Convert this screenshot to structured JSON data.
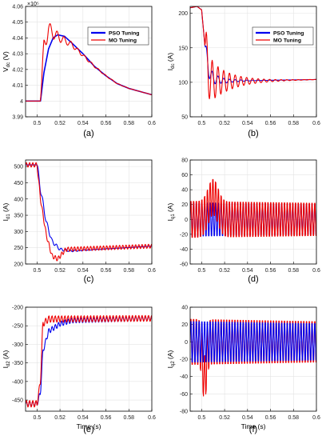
{
  "colors": {
    "pso": "#0000ee",
    "mo": "#ee0000",
    "grid": "#e3e3e3",
    "axis": "#000000"
  },
  "legend_entries": [
    "PSO Tuning",
    "MO Tuning"
  ],
  "chart_data": [
    {
      "type": "line",
      "panel": "(a)",
      "ylabel": "V_dc (V)",
      "ylabel_main": "V",
      "ylabel_sub": "dc",
      "ylabel_unit": "(V)",
      "xlabel": "",
      "exponent": "×10⁵",
      "xlim": [
        0.49,
        0.6
      ],
      "ylim": [
        3.99,
        4.06
      ],
      "xticks": [
        "0.5",
        "0.52",
        "0.54",
        "0.56",
        "0.58",
        "0.6"
      ],
      "yticks": [
        "3.99",
        "4",
        "4.01",
        "4.02",
        "4.03",
        "4.04",
        "4.05",
        "4.06"
      ],
      "legend": "top-right",
      "series": [
        {
          "name": "PSO Tuning",
          "points": [
            [
              0.49,
              4.0
            ],
            [
              0.5,
              4.0
            ],
            [
              0.503,
              4.0
            ],
            [
              0.506,
              4.018
            ],
            [
              0.51,
              4.033
            ],
            [
              0.514,
              4.04
            ],
            [
              0.518,
              4.042
            ],
            [
              0.524,
              4.041
            ],
            [
              0.53,
              4.037
            ],
            [
              0.54,
              4.03
            ],
            [
              0.55,
              4.022
            ],
            [
              0.56,
              4.016
            ],
            [
              0.57,
              4.011
            ],
            [
              0.58,
              4.008
            ],
            [
              0.59,
              4.006
            ],
            [
              0.6,
              4.004
            ]
          ]
        },
        {
          "name": "MO Tuning",
          "base": [
            [
              0.49,
              4.0
            ],
            [
              0.503,
              4.0
            ],
            [
              0.506,
              4.034
            ],
            [
              0.51,
              4.046
            ],
            [
              0.514,
              4.043
            ],
            [
              0.52,
              4.04
            ],
            [
              0.53,
              4.036
            ],
            [
              0.54,
              4.029
            ],
            [
              0.55,
              4.022
            ],
            [
              0.56,
              4.016
            ],
            [
              0.57,
              4.011
            ],
            [
              0.58,
              4.008
            ],
            [
              0.6,
              4.004
            ]
          ],
          "osc": {
            "start": 0.504,
            "amp": 0.006,
            "tau": 0.02,
            "period": 0.006
          }
        }
      ]
    },
    {
      "type": "line",
      "panel": "(b)",
      "ylabel": "I_dc (A)",
      "ylabel_main": "I",
      "ylabel_sub": "dc",
      "ylabel_unit": "(A)",
      "xlabel": "",
      "xlim": [
        0.49,
        0.6
      ],
      "ylim": [
        50,
        210
      ],
      "xticks": [
        "0.5",
        "0.52",
        "0.54",
        "0.56",
        "0.58",
        "0.6"
      ],
      "yticks": [
        "50",
        "100",
        "150",
        "200"
      ],
      "legend": "top-right",
      "series": [
        {
          "name": "PSO Tuning",
          "base": [
            [
              0.49,
              208
            ],
            [
              0.496,
              210
            ],
            [
              0.5,
              205
            ],
            [
              0.503,
              150
            ],
            [
              0.506,
              118
            ],
            [
              0.51,
              105
            ],
            [
              0.52,
              102
            ],
            [
              0.6,
              104
            ]
          ],
          "osc": {
            "start": 0.503,
            "amp": 14,
            "tau": 0.012,
            "period": 0.005
          }
        },
        {
          "name": "MO Tuning",
          "base": [
            [
              0.49,
              208
            ],
            [
              0.496,
              210
            ],
            [
              0.5,
              205
            ],
            [
              0.503,
              150
            ],
            [
              0.506,
              110
            ],
            [
              0.51,
              102
            ],
            [
              0.52,
              101
            ],
            [
              0.6,
              104
            ]
          ],
          "osc": {
            "start": 0.503,
            "amp": 40,
            "tau": 0.018,
            "period": 0.005
          }
        }
      ]
    },
    {
      "type": "line",
      "panel": "(c)",
      "ylabel": "I_d1 (A)",
      "ylabel_main": "I",
      "ylabel_sub": "d1",
      "ylabel_unit": "(A)",
      "xlabel": "",
      "xlim": [
        0.49,
        0.6
      ],
      "ylim": [
        200,
        520
      ],
      "xticks": [
        "0.5",
        "0.52",
        "0.54",
        "0.56",
        "0.58",
        "0.6"
      ],
      "yticks": [
        "200",
        "250",
        "300",
        "350",
        "400",
        "450",
        "500"
      ],
      "series": [
        {
          "name": "PSO Tuning",
          "base": [
            [
              0.49,
              505
            ],
            [
              0.5,
              505
            ],
            [
              0.503,
              430
            ],
            [
              0.508,
              330
            ],
            [
              0.513,
              270
            ],
            [
              0.52,
              245
            ],
            [
              0.53,
              240
            ],
            [
              0.6,
              255
            ]
          ],
          "osc": {
            "start": 0.5,
            "amp": 12,
            "tau": 0.02,
            "period": 0.004
          }
        },
        {
          "name": "MO Tuning",
          "base": [
            [
              0.49,
              505
            ],
            [
              0.5,
              505
            ],
            [
              0.503,
              400
            ],
            [
              0.508,
              290
            ],
            [
              0.513,
              225
            ],
            [
              0.518,
              215
            ],
            [
              0.525,
              245
            ],
            [
              0.6,
              255
            ]
          ],
          "osc": {
            "start": 0.49,
            "amp": 7,
            "tau": 1,
            "period": 0.0028
          }
        }
      ]
    },
    {
      "type": "line",
      "panel": "(d)",
      "ylabel": "I_q1 (A)",
      "ylabel_main": "I",
      "ylabel_sub": "q1",
      "ylabel_unit": "(A)",
      "xlabel": "",
      "xlim": [
        0.49,
        0.6
      ],
      "ylim": [
        -60,
        80
      ],
      "xticks": [
        "0.5",
        "0.52",
        "0.54",
        "0.56",
        "0.58",
        "0.6"
      ],
      "yticks": [
        "-60",
        "-40",
        "-20",
        "0",
        "20",
        "40",
        "60",
        "80"
      ],
      "series": [
        {
          "name": "PSO Tuning",
          "base": [
            [
              0.49,
              0
            ],
            [
              0.6,
              0
            ]
          ],
          "osc": {
            "start": 0.49,
            "amp": 26,
            "tau": 1,
            "period": 0.0024
          }
        },
        {
          "name": "MO Tuning",
          "base": [
            [
              0.49,
              0
            ],
            [
              0.6,
              0
            ]
          ],
          "osc": {
            "start": 0.49,
            "amp": 28,
            "tau": 1,
            "period": 0.0024
          },
          "bump": {
            "center": 0.51,
            "amp": 30,
            "width": 0.006
          }
        }
      ]
    },
    {
      "type": "line",
      "panel": "(e)",
      "ylabel": "I_d2 (A)",
      "ylabel_main": "I",
      "ylabel_sub": "d2",
      "ylabel_unit": "(A)",
      "xlabel": "Time (s)",
      "xlim": [
        0.49,
        0.6
      ],
      "ylim": [
        -480,
        -200
      ],
      "xticks": [
        "0.5",
        "0.52",
        "0.54",
        "0.56",
        "0.58",
        "0.6"
      ],
      "yticks": [
        "-450",
        "-400",
        "-350",
        "-300",
        "-250",
        "-200"
      ],
      "series": [
        {
          "name": "PSO Tuning",
          "base": [
            [
              0.49,
              -460
            ],
            [
              0.5,
              -460
            ],
            [
              0.503,
              -430
            ],
            [
              0.505,
              -320
            ],
            [
              0.51,
              -265
            ],
            [
              0.52,
              -245
            ],
            [
              0.53,
              -236
            ],
            [
              0.6,
              -230
            ]
          ],
          "osc": {
            "start": 0.49,
            "amp": 7,
            "tau": 1,
            "period": 0.0028
          }
        },
        {
          "name": "MO Tuning",
          "base": [
            [
              0.49,
              -460
            ],
            [
              0.5,
              -460
            ],
            [
              0.503,
              -400
            ],
            [
              0.505,
              -245
            ],
            [
              0.51,
              -232
            ],
            [
              0.6,
              -230
            ]
          ],
          "osc": {
            "start": 0.49,
            "amp": 9,
            "tau": 1,
            "period": 0.0028
          }
        }
      ]
    },
    {
      "type": "line",
      "panel": "(f)",
      "ylabel": "I_q2 (A)",
      "ylabel_main": "I",
      "ylabel_sub": "q2",
      "ylabel_unit": "(A)",
      "xlabel": "Time (s)",
      "xlim": [
        0.49,
        0.6
      ],
      "ylim": [
        -80,
        40
      ],
      "xticks": [
        "0.5",
        "0.52",
        "0.54",
        "0.56",
        "0.58",
        "0.6"
      ],
      "yticks": [
        "-80",
        "-60",
        "-40",
        "-20",
        "0",
        "20",
        "40"
      ],
      "series": [
        {
          "name": "MO Tuning",
          "base": [
            [
              0.49,
              0
            ],
            [
              0.6,
              0
            ]
          ],
          "osc": {
            "start": 0.49,
            "amp": 30,
            "tau": 1,
            "period": 0.0024
          },
          "bump": {
            "center": 0.5025,
            "amp": -42,
            "width": 0.0025
          }
        },
        {
          "name": "PSO Tuning",
          "base": [
            [
              0.49,
              0
            ],
            [
              0.6,
              0
            ]
          ],
          "osc": {
            "start": 0.49,
            "amp": 27,
            "tau": 1,
            "period": 0.0024
          }
        }
      ]
    }
  ]
}
